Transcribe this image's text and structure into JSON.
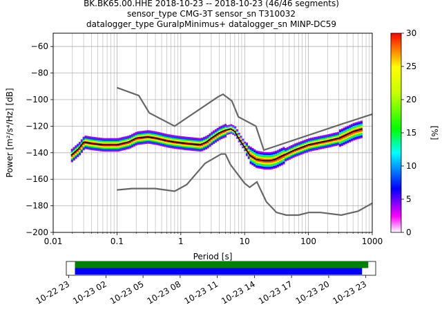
{
  "title": {
    "line1": "BK.BK65.00.HHE   2018-10-23 -- 2018-10-23  (46/46 segments)",
    "line2": "sensor_type CMG-3T sensor_sn T310032",
    "line3": "datalogger_type GuralpMinimus+ datalogger_sn MINP-DC59"
  },
  "chart_data": {
    "type": "heatmap",
    "xlabel": "Period [s]",
    "ylabel": "Power [m²/s⁴/Hz] [dB]",
    "x_scale": "log",
    "xlim": [
      0.01,
      1000
    ],
    "ylim": [
      -200,
      -50
    ],
    "x_ticks": [
      {
        "v": 0.01,
        "label": "0.01"
      },
      {
        "v": 0.1,
        "label": "0.1"
      },
      {
        "v": 1,
        "label": "1"
      },
      {
        "v": 10,
        "label": "10"
      },
      {
        "v": 100,
        "label": "100"
      },
      {
        "v": 1000,
        "label": "1000"
      }
    ],
    "y_ticks": [
      {
        "v": -60,
        "label": "−60"
      },
      {
        "v": -80,
        "label": "−80"
      },
      {
        "v": -100,
        "label": "−100"
      },
      {
        "v": -120,
        "label": "−120"
      },
      {
        "v": -140,
        "label": "−140"
      },
      {
        "v": -160,
        "label": "−160"
      },
      {
        "v": -180,
        "label": "−180"
      },
      {
        "v": -200,
        "label": "−200"
      }
    ],
    "grid": true,
    "colorbar": {
      "label": "[%]",
      "range": [
        0,
        30
      ],
      "ticks": [
        {
          "v": 0,
          "label": "0"
        },
        {
          "v": 5,
          "label": "5"
        },
        {
          "v": 10,
          "label": "10"
        },
        {
          "v": 15,
          "label": "15"
        },
        {
          "v": 20,
          "label": "20"
        },
        {
          "v": 25,
          "label": "25"
        },
        {
          "v": 30,
          "label": "30"
        }
      ]
    },
    "nhnm": [
      [
        0.1,
        -91
      ],
      [
        0.22,
        -97
      ],
      [
        0.32,
        -110
      ],
      [
        0.8,
        -120
      ],
      [
        3.8,
        -98
      ],
      [
        4.6,
        -96
      ],
      [
        6.3,
        -101
      ],
      [
        8,
        -113
      ],
      [
        15,
        -120
      ],
      [
        20,
        -138
      ],
      [
        354,
        -118
      ],
      [
        1000,
        -111
      ]
    ],
    "nlnm": [
      [
        0.1,
        -168
      ],
      [
        0.17,
        -167
      ],
      [
        0.4,
        -167
      ],
      [
        0.8,
        -169
      ],
      [
        1.24,
        -164
      ],
      [
        2.4,
        -148
      ],
      [
        4.3,
        -141
      ],
      [
        5,
        -141
      ],
      [
        6,
        -149
      ],
      [
        10,
        -163
      ],
      [
        12,
        -166
      ],
      [
        15.6,
        -162
      ],
      [
        21.9,
        -177
      ],
      [
        31.6,
        -185
      ],
      [
        45,
        -187
      ],
      [
        70,
        -187
      ],
      [
        101,
        -185
      ],
      [
        154,
        -185
      ],
      [
        328,
        -187
      ],
      [
        600,
        -184
      ],
      [
        1000,
        -178
      ]
    ],
    "mean_curve": [
      [
        0.019,
        -142
      ],
      [
        0.025,
        -137
      ],
      [
        0.03,
        -132
      ],
      [
        0.04,
        -133
      ],
      [
        0.06,
        -134
      ],
      [
        0.1,
        -134
      ],
      [
        0.15,
        -132
      ],
      [
        0.2,
        -129
      ],
      [
        0.3,
        -128
      ],
      [
        0.4,
        -129
      ],
      [
        0.6,
        -131
      ],
      [
        0.8,
        -132
      ],
      [
        1.2,
        -133
      ],
      [
        2,
        -134
      ],
      [
        2.5,
        -132
      ],
      [
        3,
        -129
      ],
      [
        4,
        -125
      ],
      [
        5,
        -123
      ],
      [
        6,
        -122
      ],
      [
        7,
        -124
      ],
      [
        8,
        -129
      ],
      [
        10,
        -136
      ],
      [
        12,
        -142
      ],
      [
        15,
        -145
      ],
      [
        20,
        -146
      ],
      [
        25,
        -146
      ],
      [
        30,
        -145
      ],
      [
        40,
        -142
      ],
      [
        60,
        -138
      ],
      [
        100,
        -134
      ],
      [
        200,
        -131
      ],
      [
        300,
        -129
      ],
      [
        500,
        -124
      ],
      [
        700,
        -122
      ]
    ],
    "time_axis": {
      "labels": [
        "10-22 23",
        "10-23 02",
        "10-23 05",
        "10-23 08",
        "10-23 11",
        "10-23 14",
        "10-23 17",
        "10-23 20",
        "10-23 23"
      ],
      "range_hours": [
        -0.2,
        24.8
      ],
      "bars": [
        {
          "color": "#008000",
          "start": 0.5,
          "end": 24.2
        },
        {
          "color": "#0000ff",
          "start": 0.5,
          "end": 23.7
        }
      ]
    }
  },
  "colors": {
    "grid": "#b0b0b0",
    "noise_model": "#666666",
    "mean": "#000000"
  }
}
